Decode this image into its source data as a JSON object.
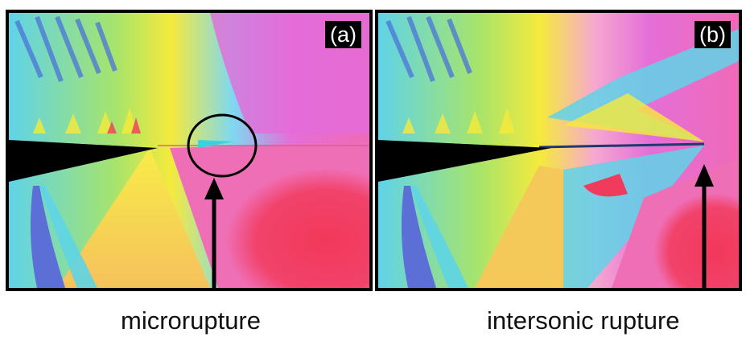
{
  "panels": {
    "a": {
      "label": "(a)",
      "caption": "microrupture"
    },
    "b": {
      "label": "(b)",
      "caption": "intersonic rupture"
    }
  },
  "colors": {
    "frame": "#000000",
    "magenta": "#e26bd5",
    "pink": "#f06aa8",
    "red": "#f13b5d",
    "yellow": "#f7ea3a",
    "cyan": "#56d3e6",
    "blue": "#4a74d9",
    "green": "#a6e05a"
  }
}
